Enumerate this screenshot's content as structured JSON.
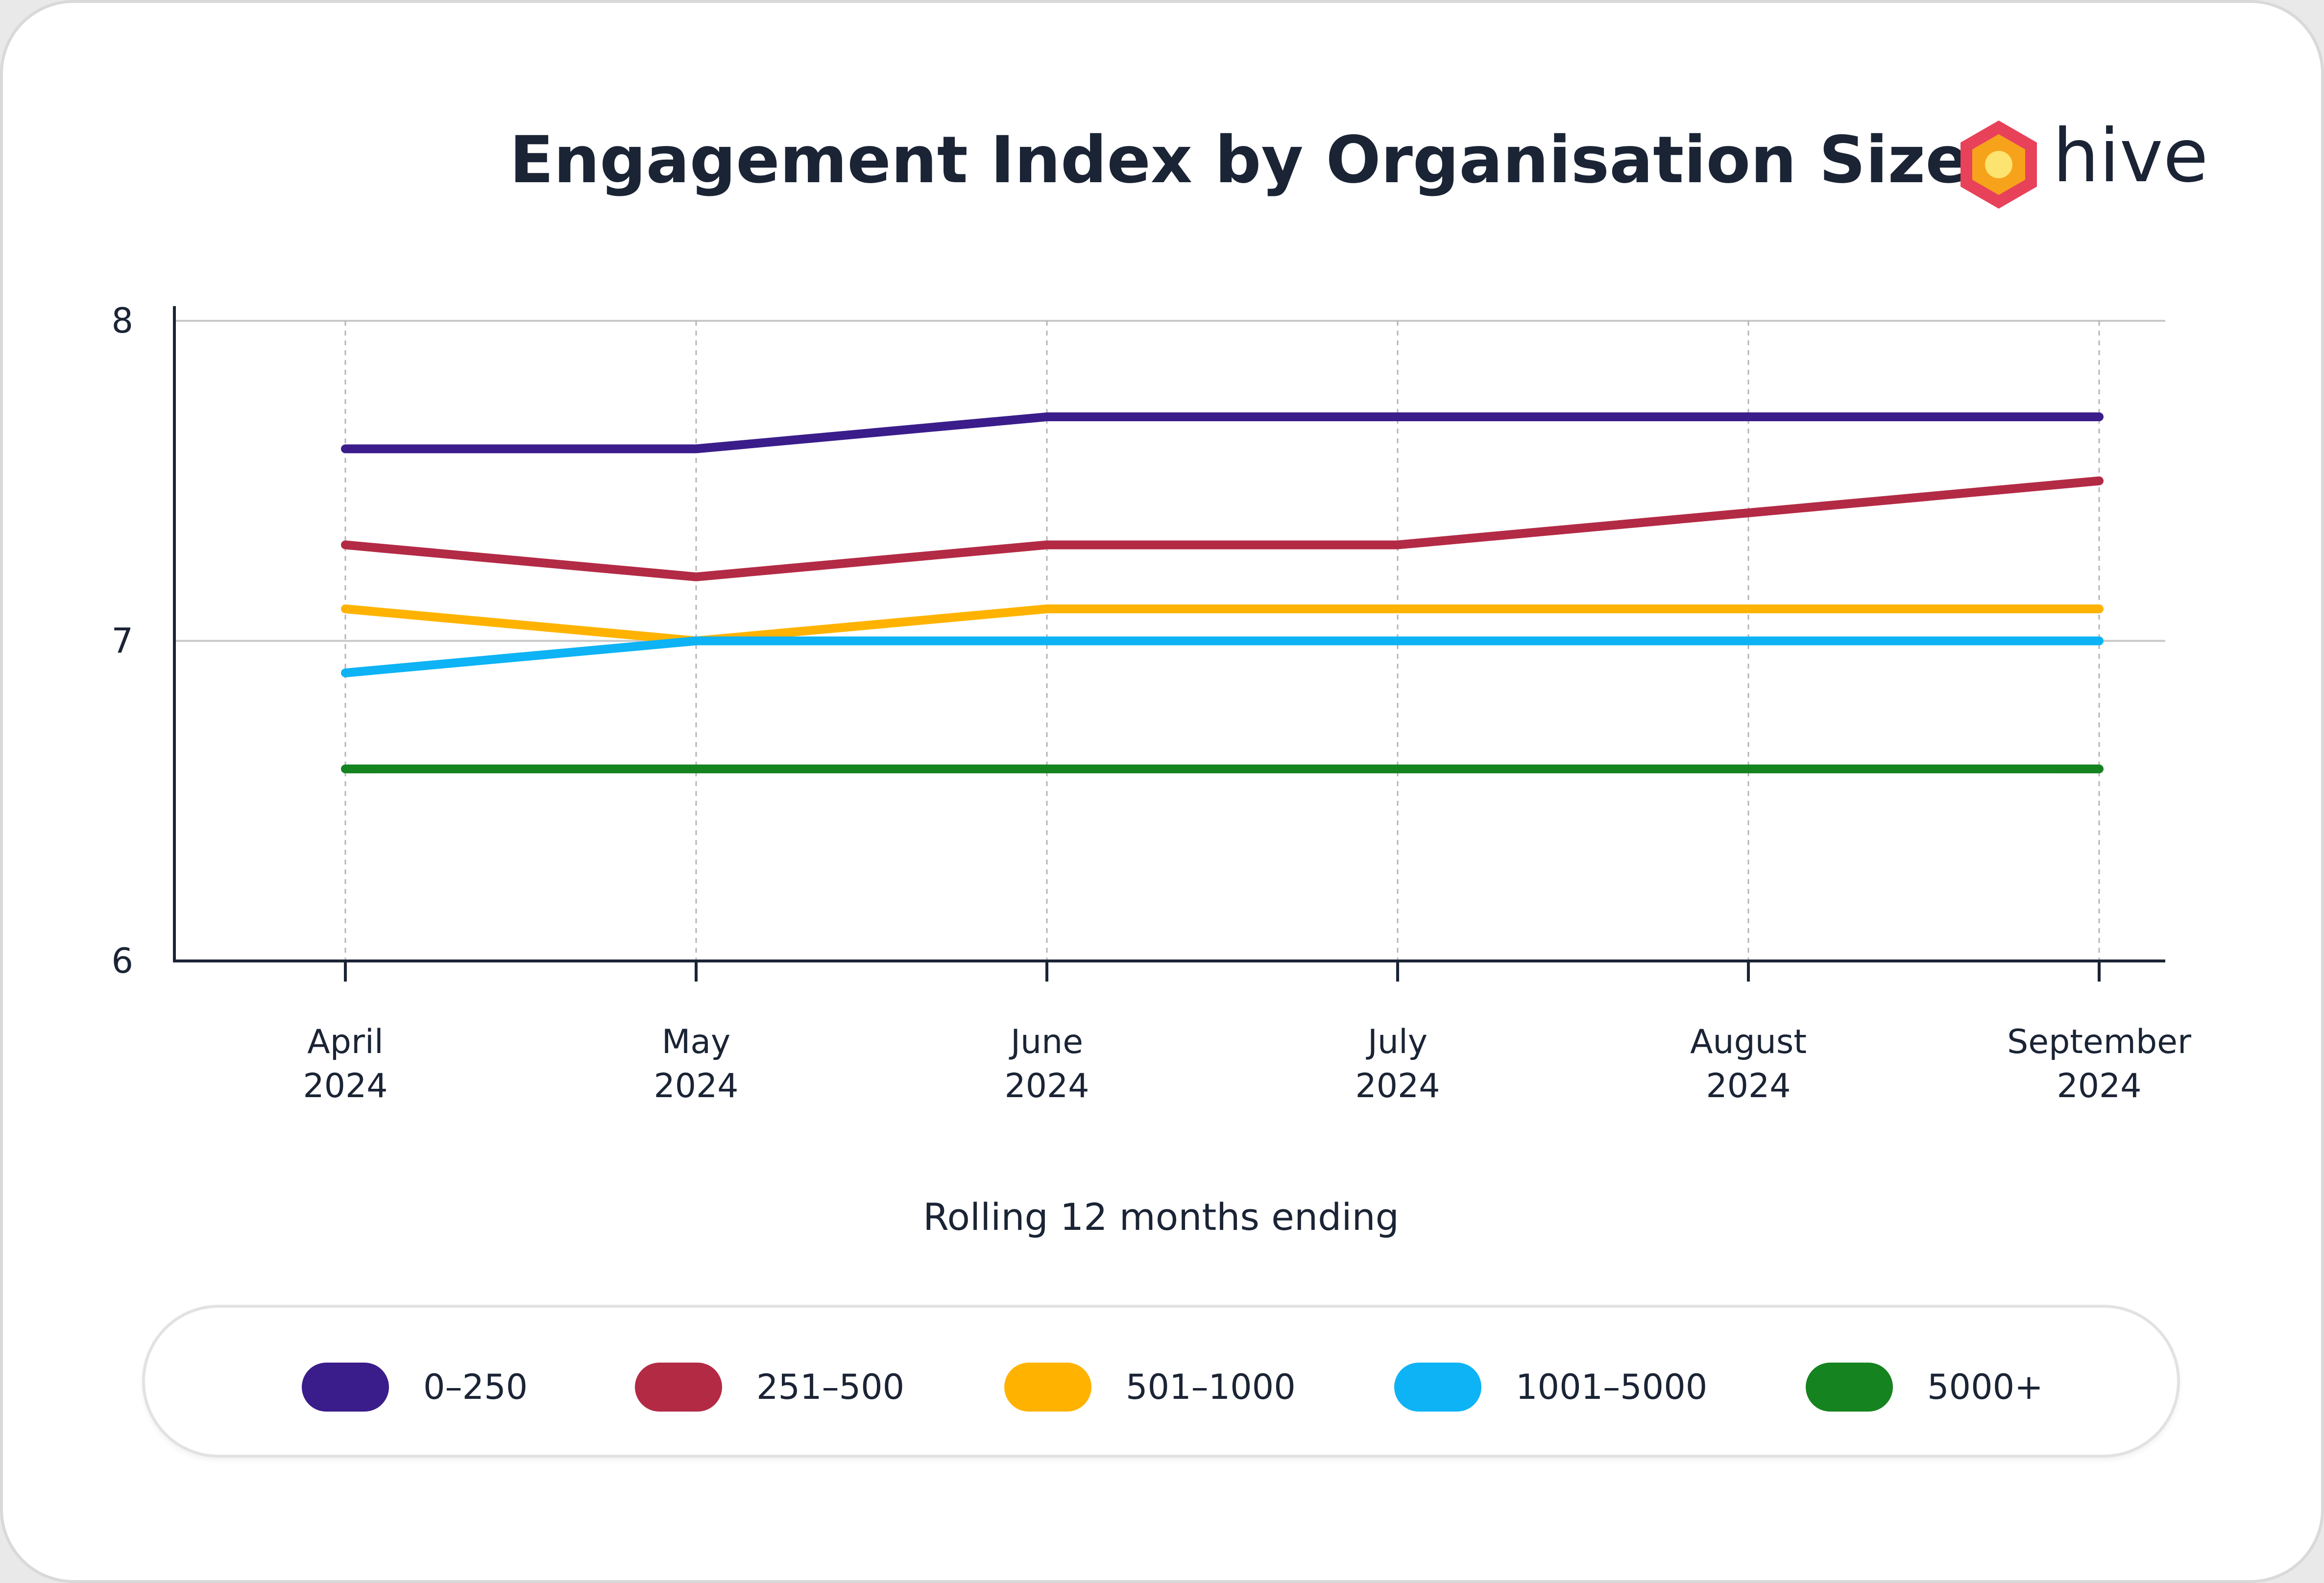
{
  "brand": {
    "name": "hive",
    "colors": {
      "outer": "#e8425a",
      "middle": "#f7a21b",
      "inner": "#fde36f"
    }
  },
  "chart_data": {
    "type": "line",
    "title": "Engagement Index by Organisation Size",
    "xlabel": "Rolling 12 months ending",
    "ylabel": "",
    "categories": [
      [
        "April",
        "2024"
      ],
      [
        "May",
        "2024"
      ],
      [
        "June",
        "2024"
      ],
      [
        "July",
        "2024"
      ],
      [
        "August",
        "2024"
      ],
      [
        "September",
        "2024"
      ]
    ],
    "ylim": [
      6,
      8
    ],
    "yticks": [
      6,
      7,
      8
    ],
    "ytick_labels": [
      "6",
      "7",
      "8"
    ],
    "grid": {
      "horizontal": "solid",
      "vertical": "dotted"
    },
    "legend_position": "bottom",
    "series": [
      {
        "name": "0-250",
        "color": "#3a1d8b",
        "values": [
          7.6,
          7.6,
          7.7,
          7.7,
          7.7,
          7.7
        ]
      },
      {
        "name": "251-500",
        "color": "#b32a45",
        "values": [
          7.3,
          7.2,
          7.3,
          7.3,
          7.4,
          7.5
        ]
      },
      {
        "name": "501-1000",
        "color": "#ffb300",
        "values": [
          7.1,
          7.0,
          7.1,
          7.1,
          7.1,
          7.1
        ]
      },
      {
        "name": "1001-5000",
        "color": "#0db3f5",
        "values": [
          6.9,
          7.0,
          7.0,
          7.0,
          7.0,
          7.0
        ]
      },
      {
        "name": "5000+",
        "color": "#15831f",
        "values": [
          6.6,
          6.6,
          6.6,
          6.6,
          6.6,
          6.6
        ]
      }
    ],
    "legend": [
      "0–250",
      "251–500",
      "501–1000",
      "1001–5000",
      "5000+"
    ]
  }
}
